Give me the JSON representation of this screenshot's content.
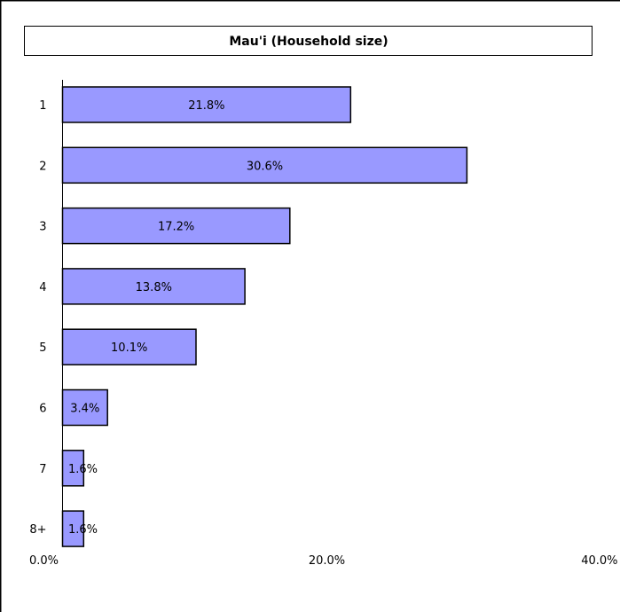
{
  "chart_data": {
    "type": "bar",
    "orientation": "horizontal",
    "title": "Mau'i (Household size)",
    "categories": [
      "1",
      "2",
      "3",
      "4",
      "5",
      "6",
      "7",
      "8+"
    ],
    "values": [
      21.8,
      30.6,
      17.2,
      13.8,
      10.1,
      3.4,
      1.6,
      1.6
    ],
    "value_labels": [
      "21.8%",
      "30.6%",
      "17.2%",
      "13.8%",
      "10.1%",
      "3.4%",
      "1.6%",
      "1.6%"
    ],
    "xlim": [
      0,
      40
    ],
    "x_ticks": [
      0,
      20,
      40
    ],
    "x_tick_labels": [
      "0.0%",
      "20.0%",
      "40.0%"
    ],
    "xlabel": "",
    "ylabel": "",
    "grid": false,
    "legend": "none",
    "bar_color": "#9999ff",
    "bar_stroke": "#000000"
  }
}
